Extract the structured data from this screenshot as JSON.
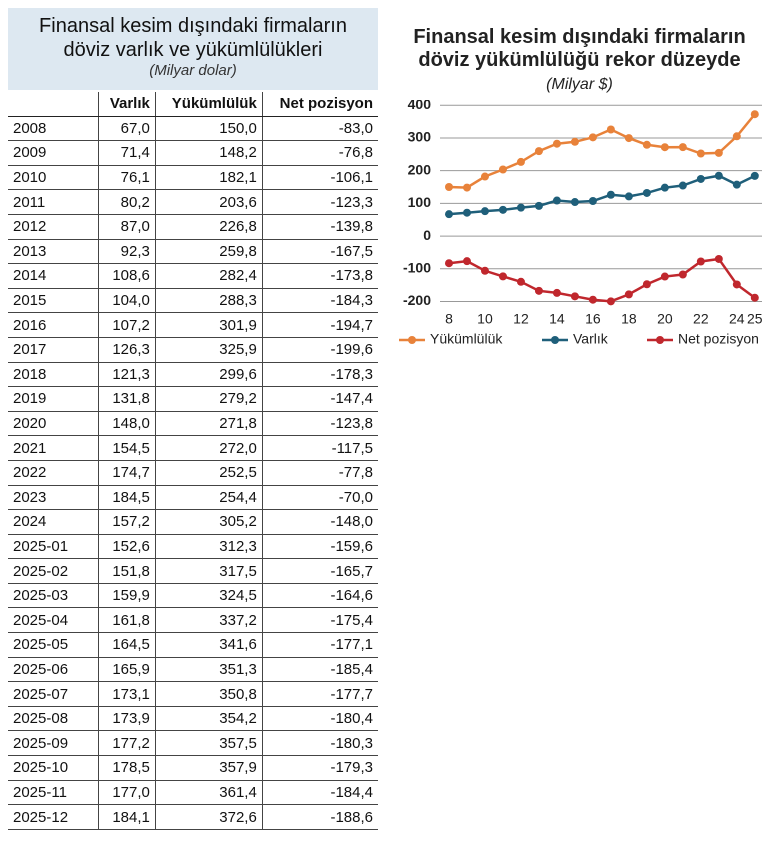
{
  "table": {
    "title": [
      "Finansal kesim dışındaki firmaların",
      "döviz varlık ve yükümlülükleri"
    ],
    "subtitle": "(Milyar dolar)",
    "headers": [
      "Varlık",
      "Yükümlülük",
      "Net pozisyon"
    ],
    "rows": [
      [
        "2008",
        "67,0",
        "150,0",
        "-83,0"
      ],
      [
        "2009",
        "71,4",
        "148,2",
        "-76,8"
      ],
      [
        "2010",
        "76,1",
        "182,1",
        "-106,1"
      ],
      [
        "2011",
        "80,2",
        "203,6",
        "-123,3"
      ],
      [
        "2012",
        "87,0",
        "226,8",
        "-139,8"
      ],
      [
        "2013",
        "92,3",
        "259,8",
        "-167,5"
      ],
      [
        "2014",
        "108,6",
        "282,4",
        "-173,8"
      ],
      [
        "2015",
        "104,0",
        "288,3",
        "-184,3"
      ],
      [
        "2016",
        "107,2",
        "301,9",
        "-194,7"
      ],
      [
        "2017",
        "126,3",
        "325,9",
        "-199,6"
      ],
      [
        "2018",
        "121,3",
        "299,6",
        "-178,3"
      ],
      [
        "2019",
        "131,8",
        "279,2",
        "-147,4"
      ],
      [
        "2020",
        "148,0",
        "271,8",
        "-123,8"
      ],
      [
        "2021",
        "154,5",
        "272,0",
        "-117,5"
      ],
      [
        "2022",
        "174,7",
        "252,5",
        "-77,8"
      ],
      [
        "2023",
        "184,5",
        "254,4",
        "-70,0"
      ],
      [
        "2024",
        "157,2",
        "305,2",
        "-148,0"
      ],
      [
        "2025-01",
        "152,6",
        "312,3",
        "-159,6"
      ],
      [
        "2025-02",
        "151,8",
        "317,5",
        "-165,7"
      ],
      [
        "2025-03",
        "159,9",
        "324,5",
        "-164,6"
      ],
      [
        "2025-04",
        "161,8",
        "337,2",
        "-175,4"
      ],
      [
        "2025-05",
        "164,5",
        "341,6",
        "-177,1"
      ],
      [
        "2025-06",
        "165,9",
        "351,3",
        "-185,4"
      ],
      [
        "2025-07",
        "173,1",
        "350,8",
        "-177,7"
      ],
      [
        "2025-08",
        "173,9",
        "354,2",
        "-180,4"
      ],
      [
        "2025-09",
        "177,2",
        "357,5",
        "-180,3"
      ],
      [
        "2025-10",
        "178,5",
        "357,9",
        "-179,3"
      ],
      [
        "2025-11",
        "177,0",
        "361,4",
        "-184,4"
      ],
      [
        "2025-12",
        "184,1",
        "372,6",
        "-188,6"
      ]
    ]
  },
  "chart_data": {
    "type": "line",
    "title": "Finansal kesim dışındaki firmaların döviz yükümlülüğü rekor düzeyde",
    "subtitle": "(Milyar $)",
    "x": [
      8,
      9,
      10,
      11,
      12,
      13,
      14,
      15,
      16,
      17,
      18,
      19,
      20,
      21,
      22,
      23,
      24,
      25
    ],
    "series": [
      {
        "name": "Yükümlülük",
        "color": "#e8823a",
        "values": [
          150.0,
          148.2,
          182.1,
          203.6,
          226.8,
          259.8,
          282.4,
          288.3,
          301.9,
          325.9,
          299.6,
          279.2,
          271.8,
          272.0,
          252.5,
          254.4,
          305.2,
          372.6
        ]
      },
      {
        "name": "Varlık",
        "color": "#1f5f7a",
        "values": [
          67.0,
          71.4,
          76.1,
          80.2,
          87.0,
          92.3,
          108.6,
          104.0,
          107.2,
          126.3,
          121.3,
          131.8,
          148.0,
          154.5,
          174.7,
          184.5,
          157.2,
          184.1
        ]
      },
      {
        "name": "Net pozisyon",
        "color": "#c0272d",
        "values": [
          -83.0,
          -76.8,
          -106.1,
          -123.3,
          -139.8,
          -167.5,
          -173.8,
          -184.3,
          -194.7,
          -199.6,
          -178.3,
          -147.4,
          -123.8,
          -117.5,
          -77.8,
          -70.0,
          -148.0,
          -188.6
        ]
      }
    ],
    "xlim": [
      7.5,
      25.4
    ],
    "xticks": [
      8,
      10,
      12,
      14,
      16,
      18,
      20,
      22,
      24,
      25
    ],
    "ylim": [
      -220,
      410
    ],
    "yticks": [
      -200,
      -100,
      0,
      100,
      200,
      300,
      400
    ],
    "grid": true,
    "legend": "bottom"
  }
}
